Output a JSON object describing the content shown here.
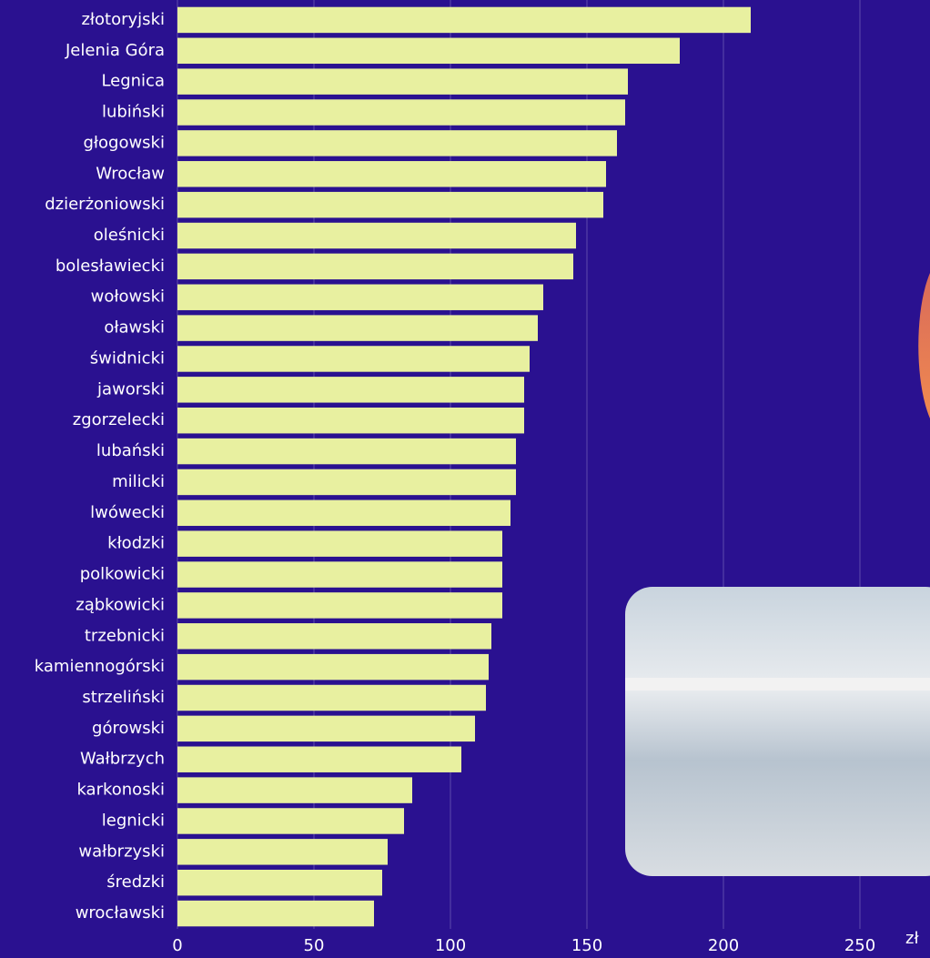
{
  "chart_data": {
    "type": "bar",
    "orientation": "horizontal",
    "x_label": "zł",
    "categories": [
      "złotoryjski",
      "Jelenia Góra",
      "Legnica",
      "lubiński",
      "głogowski",
      "Wrocław",
      "dzierżoniowski",
      "oleśnicki",
      "bolesławiecki",
      "wołowski",
      "oławski",
      "świdnicki",
      "jaworski",
      "zgorzelecki",
      "lubański",
      "milicki",
      "lwówecki",
      "kłodzki",
      "polkowicki",
      "ząbkowicki",
      "trzebnicki",
      "kamiennogórski",
      "strzeliński",
      "górowski",
      "Wałbrzych",
      "karkonoski",
      "legnicki",
      "wałbrzyski",
      "średzki",
      "wrocławski"
    ],
    "values": [
      210,
      184,
      165,
      164,
      161,
      157,
      156,
      146,
      145,
      134,
      132,
      129,
      127,
      127,
      124,
      124,
      122,
      119,
      119,
      119,
      115,
      114,
      113,
      109,
      104,
      86,
      83,
      77,
      75,
      72
    ],
    "color": "#e8f0a0",
    "xlim": [
      0,
      250
    ],
    "xticks": [
      0,
      50,
      100,
      150,
      200,
      250
    ],
    "grid": true
  }
}
